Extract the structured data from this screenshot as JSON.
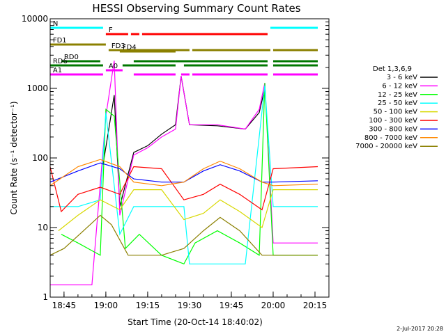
{
  "chart_data": {
    "type": "line",
    "title": "HESSI Observing Summary Count Rates",
    "xlabel": "Start Time (20-Oct-14 18:40:02)",
    "ylabel": "Count Rate (s⁻¹ detector⁻¹)",
    "y_scale": "log",
    "xlim": [
      "18:40:02",
      "20:20:00"
    ],
    "ylim": [
      1,
      10000
    ],
    "x_ticks": [
      "18:45",
      "19:00",
      "19:15",
      "19:30",
      "19:45",
      "20:00",
      "20:15"
    ],
    "y_ticks": [
      "1",
      "10",
      "100",
      "1000",
      "10000"
    ],
    "legend_title": "Det 1,3,6,9",
    "legend_position": "right",
    "grid": false,
    "footer": "2-Jul-2017 20:28",
    "series": [
      {
        "name": "3 - 6 keV",
        "color": "#000000",
        "x": [
          "18:59",
          "19:03",
          "19:05",
          "19:10",
          "19:15",
          "19:20",
          "19:25",
          "19:27",
          "19:30",
          "19:40",
          "19:50",
          "19:55",
          "19:57"
        ],
        "y": [
          80,
          800,
          20,
          120,
          150,
          220,
          300,
          1500,
          300,
          290,
          260,
          450,
          1000
        ]
      },
      {
        "name": "6 - 12 keV",
        "color": "#ff00ff",
        "x": [
          "18:40",
          "18:52",
          "18:55",
          "19:00",
          "19:03",
          "19:05",
          "19:10",
          "19:15",
          "19:20",
          "19:25",
          "19:27",
          "19:30",
          "19:40",
          "19:50",
          "19:55",
          "19:57",
          "20:00",
          "20:16"
        ],
        "y": [
          1.5,
          1.5,
          1.5,
          400,
          2500,
          15,
          110,
          140,
          200,
          260,
          1500,
          300,
          300,
          260,
          500,
          1200,
          6,
          6
        ]
      },
      {
        "name": "12 - 25 keV",
        "color": "#00ff00",
        "x": [
          "18:44",
          "18:50",
          "18:58",
          "19:00",
          "19:03",
          "19:07",
          "19:12",
          "19:20",
          "19:28",
          "19:32",
          "19:40",
          "19:48",
          "19:55",
          "19:57",
          "20:00",
          "20:16"
        ],
        "y": [
          8,
          6,
          4,
          500,
          400,
          5,
          8,
          4,
          3,
          6,
          9,
          6,
          4,
          1200,
          4,
          4
        ]
      },
      {
        "name": "25 - 50 keV",
        "color": "#00ffff",
        "x": [
          "18:40",
          "18:50",
          "18:58",
          "19:00",
          "19:05",
          "19:10",
          "19:20",
          "19:28",
          "19:30",
          "19:40",
          "19:50",
          "19:57",
          "20:00",
          "20:16"
        ],
        "y": [
          20,
          20,
          25,
          450,
          8,
          20,
          20,
          20,
          3,
          3,
          3,
          1100,
          20,
          20
        ]
      },
      {
        "name": "50 - 100 keV",
        "color": "#d8d800",
        "x": [
          "18:43",
          "18:50",
          "18:58",
          "19:05",
          "19:10",
          "19:20",
          "19:28",
          "19:35",
          "19:41",
          "19:48",
          "19:56",
          "20:00",
          "20:16"
        ],
        "y": [
          9,
          15,
          25,
          18,
          35,
          35,
          13,
          16,
          25,
          17,
          10,
          35,
          35
        ]
      },
      {
        "name": "100 - 300 keV",
        "color": "#ff0000",
        "x": [
          "18:40",
          "18:44",
          "18:50",
          "18:58",
          "19:05",
          "19:10",
          "19:20",
          "19:28",
          "19:35",
          "19:41",
          "19:48",
          "19:56",
          "20:00",
          "20:16"
        ],
        "y": [
          75,
          17,
          30,
          38,
          30,
          75,
          70,
          25,
          30,
          42,
          30,
          18,
          70,
          75
        ]
      },
      {
        "name": "300 - 800 keV",
        "color": "#0000ff",
        "x": [
          "18:40",
          "18:50",
          "18:58",
          "19:05",
          "19:10",
          "19:20",
          "19:28",
          "19:35",
          "19:41",
          "19:48",
          "19:56",
          "20:00",
          "20:16"
        ],
        "y": [
          45,
          65,
          85,
          70,
          50,
          45,
          45,
          65,
          80,
          65,
          45,
          45,
          47
        ]
      },
      {
        "name": "800 - 7000 keV",
        "color": "#ff8800",
        "x": [
          "18:40",
          "18:50",
          "18:58",
          "19:05",
          "19:10",
          "19:20",
          "19:28",
          "19:35",
          "19:41",
          "19:48",
          "19:56",
          "20:00",
          "20:16"
        ],
        "y": [
          40,
          75,
          95,
          75,
          45,
          40,
          45,
          70,
          90,
          70,
          45,
          40,
          42
        ]
      },
      {
        "name": "7000 - 20000 keV",
        "color": "#8b8000",
        "x": [
          "18:40",
          "18:45",
          "18:52",
          "18:58",
          "19:02",
          "19:08",
          "19:20",
          "19:28",
          "19:35",
          "19:41",
          "19:48",
          "19:56",
          "20:00",
          "20:16"
        ],
        "y": [
          4,
          5,
          9,
          15,
          11,
          4,
          4,
          5,
          9,
          14,
          9,
          4,
          4,
          4
        ]
      }
    ],
    "flags": [
      {
        "name": "N",
        "color": "#00ffff",
        "intervals": [
          [
            "18:40",
            "18:59"
          ],
          [
            "19:59",
            "20:16"
          ]
        ]
      },
      {
        "name": "F",
        "color": "#ff0000",
        "intervals": [
          [
            "19:00",
            "19:08"
          ],
          [
            "19:09",
            "19:12"
          ],
          [
            "19:13",
            "19:58"
          ]
        ]
      },
      {
        "name": "FD1",
        "color": "#8b8000",
        "intervals": [
          [
            "18:40",
            "19:00"
          ]
        ]
      },
      {
        "name": "FD3",
        "color": "#8b8000",
        "intervals": [
          [
            "19:01",
            "19:30"
          ],
          [
            "19:31",
            "19:59"
          ],
          [
            "20:00",
            "20:16"
          ]
        ]
      },
      {
        "name": "FD4",
        "color": "#8b8000",
        "intervals": [
          [
            "19:05",
            "19:25"
          ]
        ]
      },
      {
        "name": "RD0",
        "color": "#007700",
        "intervals": [
          [
            "18:44",
            "18:58"
          ],
          [
            "19:10",
            "19:25"
          ],
          [
            "19:25",
            "19:58"
          ],
          [
            "20:00",
            "20:16"
          ]
        ]
      },
      {
        "name": "RD6",
        "color": "#007700",
        "intervals": [
          [
            "18:40",
            "18:59"
          ],
          [
            "19:06",
            "19:25"
          ],
          [
            "19:28",
            "19:58"
          ],
          [
            "20:00",
            "20:16"
          ]
        ]
      },
      {
        "name": "A0",
        "color": "#ff00ff",
        "intervals": [
          [
            "19:00",
            "19:06"
          ]
        ]
      },
      {
        "name": "A1",
        "color": "#ff00ff",
        "intervals": [
          [
            "18:40",
            "18:59"
          ],
          [
            "19:10",
            "19:25"
          ],
          [
            "19:27",
            "19:30"
          ],
          [
            "19:31",
            "19:58"
          ],
          [
            "20:00",
            "20:16"
          ]
        ]
      }
    ]
  }
}
